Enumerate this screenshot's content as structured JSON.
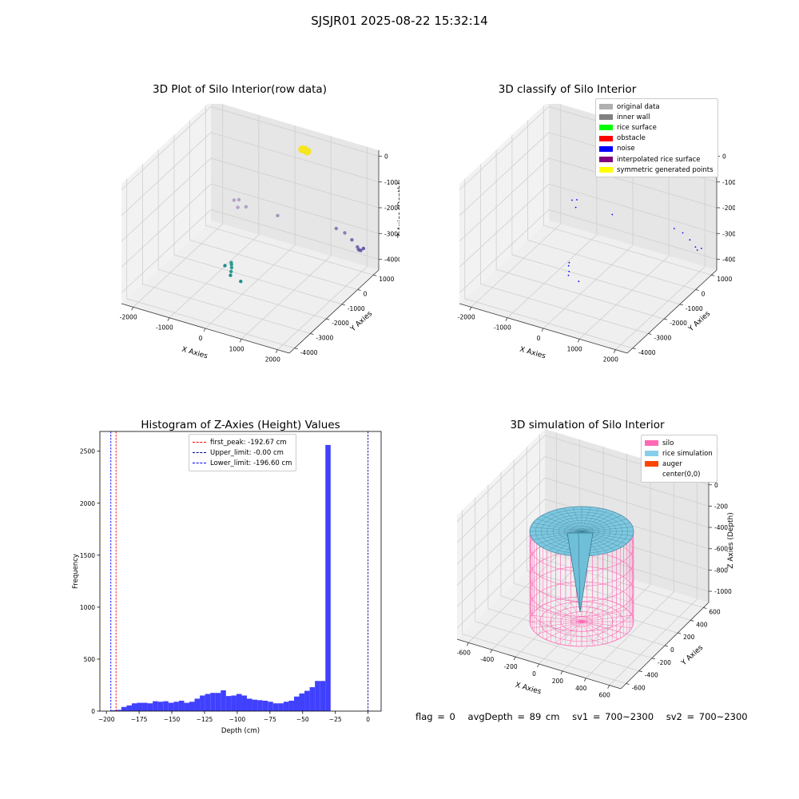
{
  "figure_title": "SJSJR01 2025-08-22 15:32:14",
  "chart_data": [
    {
      "type": "scatter",
      "title": "3D Plot of Silo Interior(row data)",
      "xlabel": "X Axies",
      "ylabel": "Y Axies",
      "zlabel": "Z Axies (Depth)",
      "x_ticks": [
        "-2000",
        "-1000",
        "0",
        "1000",
        "2000"
      ],
      "y_ticks": [
        "-4000",
        "-3000",
        "-2000",
        "-1000",
        "0",
        "1000"
      ],
      "z_ticks": [
        "0",
        "-1000",
        "-2000",
        "-3000",
        "-4000"
      ],
      "grid": true,
      "points": [
        {
          "x": 700,
          "y": 600,
          "z": 0,
          "color": "#f5e61e"
        },
        {
          "x": 760,
          "y": 620,
          "z": -50,
          "color": "#f5e61e"
        },
        {
          "x": 640,
          "y": 560,
          "z": 20,
          "color": "#f5e61e"
        },
        {
          "x": -1500,
          "y": 800,
          "z": -3000,
          "color": "#b3a0c8"
        },
        {
          "x": -1400,
          "y": 900,
          "z": -3000,
          "color": "#b3a0c8"
        },
        {
          "x": -1300,
          "y": 600,
          "z": -3100,
          "color": "#b3a0c8"
        },
        {
          "x": -1100,
          "y": 700,
          "z": -3050,
          "color": "#b3a0c8"
        },
        {
          "x": -200,
          "y": 800,
          "z": -3100,
          "color": "#a694c0"
        },
        {
          "x": 1500,
          "y": 900,
          "z": -3000,
          "color": "#8e7cb6"
        },
        {
          "x": 1800,
          "y": 800,
          "z": -3000,
          "color": "#8e7cb6"
        },
        {
          "x": 2100,
          "y": 600,
          "z": -3050,
          "color": "#7e6aae"
        },
        {
          "x": 2400,
          "y": 300,
          "z": -3050,
          "color": "#7e6aae"
        },
        {
          "x": 2450,
          "y": 250,
          "z": -3100,
          "color": "#7e6aae"
        },
        {
          "x": 2500,
          "y": 200,
          "z": -3080,
          "color": "#6a5aa6"
        },
        {
          "x": 2550,
          "y": 180,
          "z": -3060,
          "color": "#6a5aa6"
        },
        {
          "x": 2600,
          "y": 250,
          "z": -3000,
          "color": "#6a5aa6"
        },
        {
          "x": -650,
          "y": -1300,
          "z": -4000,
          "color": "#2a9d8f"
        },
        {
          "x": -600,
          "y": -1400,
          "z": -4000,
          "color": "#2a9d8f"
        },
        {
          "x": -550,
          "y": -1500,
          "z": -4050,
          "color": "#2a9d8f"
        },
        {
          "x": -500,
          "y": -1650,
          "z": -4100,
          "color": "#2a9d8f"
        },
        {
          "x": -750,
          "y": -1500,
          "z": -4050,
          "color": "#218e8e"
        },
        {
          "x": -450,
          "y": -1800,
          "z": -4150,
          "color": "#218e8e"
        },
        {
          "x": -100,
          "y": -1900,
          "z": -4200,
          "color": "#218e8e"
        }
      ]
    },
    {
      "type": "scatter",
      "title": "3D classify of Silo Interior",
      "xlabel": "X Axies",
      "ylabel": "Y Axies",
      "zlabel": "Z Axies (Depth)",
      "x_ticks": [
        "-2000",
        "-1000",
        "0",
        "1000",
        "2000"
      ],
      "y_ticks": [
        "-4000",
        "-3000",
        "-2000",
        "-1000",
        "0",
        "1000"
      ],
      "z_ticks": [
        "0",
        "-1000",
        "-2000",
        "-3000",
        "-4000"
      ],
      "grid": true,
      "legend_placement": "top-right",
      "legend": [
        {
          "label": "original data",
          "color": "#b0b0b0"
        },
        {
          "label": "inner wall",
          "color": "#808080"
        },
        {
          "label": "rice surface",
          "color": "#00ff00"
        },
        {
          "label": "obstacle",
          "color": "#ff0000"
        },
        {
          "label": "noise",
          "color": "#0000ff"
        },
        {
          "label": "interpolated rice surface",
          "color": "#800080"
        },
        {
          "label": "symmetric generated points",
          "color": "#ffff00"
        }
      ],
      "noise_points": [
        {
          "x": -1500,
          "y": 800,
          "z": -3000
        },
        {
          "x": -1400,
          "y": 900,
          "z": -3000
        },
        {
          "x": -1300,
          "y": 600,
          "z": -3100
        },
        {
          "x": -300,
          "y": 800,
          "z": -3100
        },
        {
          "x": 1500,
          "y": 900,
          "z": -3000
        },
        {
          "x": 1800,
          "y": 800,
          "z": -3000
        },
        {
          "x": 2100,
          "y": 600,
          "z": -3050
        },
        {
          "x": 2400,
          "y": 300,
          "z": -3050
        },
        {
          "x": 2500,
          "y": 200,
          "z": -3080
        },
        {
          "x": 2600,
          "y": 250,
          "z": -3000
        },
        {
          "x": -650,
          "y": -1300,
          "z": -4000
        },
        {
          "x": -600,
          "y": -1450,
          "z": -4020
        },
        {
          "x": -500,
          "y": -1650,
          "z": -4100
        },
        {
          "x": -450,
          "y": -1800,
          "z": -4150
        },
        {
          "x": -100,
          "y": -1900,
          "z": -4200
        }
      ]
    },
    {
      "type": "bar",
      "title": "Histogram of Z-Axies (Height) Values",
      "xlabel": "Depth (cm)",
      "ylabel": "Frequency",
      "xlim": [
        -205,
        10
      ],
      "ylim": [
        0,
        2690
      ],
      "x_ticks": [
        -200,
        -175,
        -150,
        -125,
        -100,
        -75,
        -50,
        -25,
        0
      ],
      "y_ticks": [
        0,
        500,
        1000,
        1500,
        2000,
        2500
      ],
      "bin_start": -196.6,
      "bin_width": 4,
      "values": [
        8,
        12,
        40,
        55,
        75,
        80,
        80,
        75,
        95,
        90,
        95,
        80,
        90,
        100,
        80,
        90,
        120,
        150,
        165,
        175,
        175,
        200,
        145,
        150,
        165,
        150,
        120,
        110,
        105,
        100,
        90,
        75,
        75,
        90,
        100,
        140,
        170,
        195,
        230,
        290,
        290,
        2560
      ],
      "bar_color": "#4040ff",
      "legend_placement": "top-center",
      "vlines": [
        {
          "label": "first_peak: -192.67 cm",
          "x": -192.67,
          "color": "#ff0000"
        },
        {
          "label": "Upper_limit: -0.00 cm",
          "x": -0.0,
          "color": "#00008b"
        },
        {
          "label": "Lower_limit: -196.60 cm",
          "x": -196.6,
          "color": "#0000ff"
        }
      ]
    },
    {
      "type": "surface",
      "title": "3D simulation of Silo Interior",
      "xlabel": "X Axies",
      "ylabel": "Y Axies",
      "zlabel": "Z Axies (Depth)",
      "x_ticks": [
        "-600",
        "-400",
        "-200",
        "0",
        "200",
        "400",
        "600"
      ],
      "y_ticks": [
        "-600",
        "-400",
        "-200",
        "0",
        "200",
        "400",
        "600"
      ],
      "z_ticks": [
        "0",
        "-200",
        "-400",
        "-600",
        "-800",
        "-1000"
      ],
      "legend_placement": "top-right",
      "legend": [
        {
          "label": "silo",
          "color": "#ff69b4"
        },
        {
          "label": "rice simulation",
          "color": "#87ceeb"
        },
        {
          "label": "auger",
          "color": "#ff4500"
        },
        {
          "label": "center(0,0)",
          "color": ""
        }
      ]
    }
  ],
  "footer": {
    "flag": "flag = 0",
    "avg": "avgDepth = 89 cm",
    "sv1": "sv1 = 700~2300",
    "sv2": "sv2 = 700~2300"
  }
}
